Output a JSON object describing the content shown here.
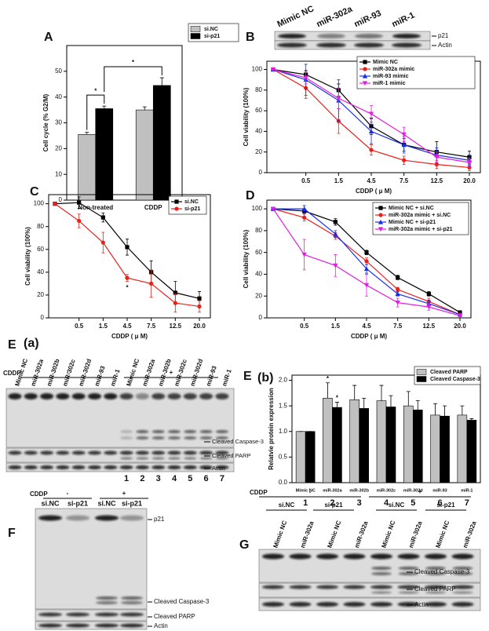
{
  "chart_data": [
    {
      "type": "bar",
      "panel": "A",
      "ylabel": "Cell cycle (% G2/M)",
      "categories": [
        "Non-treated",
        "CDDP"
      ],
      "ylim": [
        0,
        60
      ],
      "yticks": [
        0,
        10,
        20,
        30,
        40,
        50
      ],
      "legend": "top-right",
      "annotations": [
        "*",
        "*"
      ],
      "series": [
        {
          "name": "si.NC",
          "color": "#c0c0c0",
          "values": [
            25.5,
            35
          ],
          "errors": [
            0.8,
            1.2
          ]
        },
        {
          "name": "si-p21",
          "color": "#000000",
          "values": [
            35.5,
            44.5
          ],
          "errors": [
            1,
            3
          ]
        }
      ]
    },
    {
      "type": "line",
      "panel": "B",
      "ylabel": "Cell viability (100%)",
      "xlabel": "CDDP ( μ M)",
      "categories": [
        null,
        "0.5",
        "1.5",
        "4.5",
        "7.5",
        "12.5",
        "20.0"
      ],
      "ylim": [
        0,
        108
      ],
      "yticks": [
        0,
        20,
        40,
        60,
        80,
        100
      ],
      "legend": "top-right",
      "series": [
        {
          "name": "Mimic NC",
          "color": "#000000",
          "marker": "square",
          "values": [
            100,
            95,
            80,
            45,
            27,
            20,
            15
          ],
          "errors": [
            0,
            4,
            6,
            8,
            6,
            10,
            6
          ]
        },
        {
          "name": "miR-302a mimic",
          "color": "#e8201a",
          "marker": "circle",
          "values": [
            100,
            82,
            50,
            22,
            12,
            8,
            5
          ],
          "errors": [
            0,
            10,
            12,
            5,
            4,
            4,
            3
          ]
        },
        {
          "name": "miR-93 mimic",
          "color": "#1a2ee8",
          "marker": "triangle",
          "values": [
            100,
            90,
            70,
            40,
            27,
            17,
            12
          ],
          "errors": [
            0,
            15,
            20,
            12,
            8,
            7,
            5
          ]
        },
        {
          "name": "miR-1 mimic",
          "color": "#e020e0",
          "marker": "triangle-down",
          "values": [
            100,
            92,
            72,
            57,
            37,
            15,
            10
          ],
          "errors": [
            0,
            6,
            10,
            8,
            7,
            5,
            4
          ]
        }
      ]
    },
    {
      "type": "line",
      "panel": "C",
      "ylabel": "Cell viability (100%)",
      "xlabel": "CDDP ( μ M)",
      "categories": [
        null,
        "0.5",
        "1.5",
        "4.5",
        "7.5",
        "12.5",
        "20.0"
      ],
      "ylim": [
        0,
        108
      ],
      "yticks": [
        0,
        20,
        40,
        60,
        80,
        100
      ],
      "legend": "top-right",
      "annotations": [
        "*"
      ],
      "series": [
        {
          "name": "si.NC",
          "color": "#000000",
          "marker": "square",
          "values": [
            100,
            101,
            88,
            62,
            40,
            22,
            17
          ],
          "errors": [
            0,
            5,
            4,
            7,
            10,
            10,
            6
          ]
        },
        {
          "name": "si-p21",
          "color": "#e8201a",
          "marker": "circle",
          "values": [
            100,
            85,
            66,
            35,
            30,
            13,
            10
          ],
          "errors": [
            0,
            6,
            9,
            3,
            12,
            8,
            5
          ]
        }
      ]
    },
    {
      "type": "line",
      "panel": "D",
      "ylabel": "Cell viability (100%)",
      "xlabel": "CDDP ( μ M)",
      "categories": [
        null,
        "0.5",
        "1.5",
        "4.5",
        "7.5",
        "12.5",
        "20.0"
      ],
      "ylim": [
        0,
        108
      ],
      "yticks": [
        0,
        20,
        40,
        60,
        80,
        100
      ],
      "legend": "top-right",
      "series": [
        {
          "name": "Mimic NC + si.NC",
          "color": "#000000",
          "marker": "square",
          "values": [
            100,
            98,
            88,
            60,
            37,
            22,
            5
          ],
          "errors": [
            0,
            2,
            3,
            2,
            2,
            2,
            1
          ]
        },
        {
          "name": "miR-302a mimic + si.NC",
          "color": "#e8201a",
          "marker": "circle",
          "values": [
            100,
            92,
            75,
            52,
            26,
            15,
            3
          ],
          "errors": [
            0,
            3,
            3,
            3,
            2,
            3,
            1
          ]
        },
        {
          "name": "Mimic NC + si-p21",
          "color": "#1a2ee8",
          "marker": "triangle",
          "values": [
            100,
            100,
            77,
            45,
            22,
            13,
            3
          ],
          "errors": [
            0,
            3,
            3,
            4,
            2,
            3,
            1
          ]
        },
        {
          "name": "miR-302a mimic + si-p21",
          "color": "#e020e0",
          "marker": "triangle-down",
          "values": [
            100,
            58,
            48,
            30,
            14,
            10,
            2
          ],
          "errors": [
            0,
            14,
            10,
            10,
            4,
            3,
            1
          ]
        }
      ]
    },
    {
      "type": "bar",
      "panel": "E",
      "subpanel": "(b)",
      "ylabel": "Relatvie protein expression",
      "categories": [
        "Mimic NC",
        "miR-302a",
        "miR-302b",
        "miR-302c",
        "miR-302d",
        "miR-93",
        "miR-1"
      ],
      "category_numbers": [
        "1",
        "2",
        "3",
        "4",
        "5",
        "6",
        "7"
      ],
      "ylim": [
        0,
        2.1
      ],
      "yticks": [
        {
          "value": 0,
          "label": "0.0"
        },
        {
          "value": 0.5,
          "label": "0.5"
        },
        {
          "value": 1,
          "label": "1.0"
        },
        {
          "value": 1.5,
          "label": "1.5"
        },
        {
          "value": 2,
          "label": "2.0"
        }
      ],
      "legend": "top-right",
      "annotations": [
        "*",
        "*"
      ],
      "series": [
        {
          "name": "Cleaved PARP",
          "color": "#c0c0c0",
          "values": [
            1,
            1.65,
            1.62,
            1.6,
            1.5,
            1.32,
            1.32
          ],
          "errors": [
            0,
            0.3,
            0.28,
            0.3,
            0.28,
            0.22,
            0.18
          ]
        },
        {
          "name": "Cleaved Caspase-3",
          "color": "#000000",
          "values": [
            1,
            1.47,
            1.45,
            1.48,
            1.42,
            1.3,
            1.22
          ],
          "errors": [
            0,
            0.1,
            0.2,
            0.22,
            0.18,
            0.2,
            0.03
          ]
        }
      ]
    }
  ],
  "blots": {
    "B": {
      "lanes": [
        "Mimic NC",
        "miR-302a",
        "miR-93",
        "miR-1"
      ],
      "rows": [
        "p21",
        "Actin"
      ]
    },
    "Ea": {
      "label": "E",
      "sublabel": "(a)",
      "treatment": "CDDP",
      "groups": [
        "-",
        "+"
      ],
      "lanes": [
        "Mimic NC",
        "miR-302a",
        "miR-302b",
        "miR-302c",
        "miR-302d",
        "miR-93",
        "miR-1",
        "Mimic NC",
        "miR-302a",
        "miR-302b",
        "miR-302c",
        "miR-302d",
        "miR-93",
        "miR-1"
      ],
      "lane_numbers": [
        "1",
        "2",
        "3",
        "4",
        "5",
        "6",
        "7"
      ],
      "rows": [
        "Cleaved Caspase-3",
        "Cleaved PARP",
        "Actin"
      ]
    },
    "F": {
      "label": "F",
      "treatment": "CDDP",
      "groups": [
        "-",
        "+"
      ],
      "lanes": [
        "si.NC",
        "si-p21",
        "si.NC",
        "si-p21"
      ],
      "rows": [
        "p21",
        "Cleaved Caspase-3",
        "Cleaved PARP",
        "Actin"
      ]
    },
    "G": {
      "label": "G",
      "treatment": "CDDP",
      "groups": [
        "-",
        "+"
      ],
      "subgroups": [
        "si.NC",
        "si-p21",
        "si.NC",
        "si-p21"
      ],
      "lanes": [
        "Mimic NC",
        "miR-302a",
        "Mimic NC",
        "miR-302a",
        "Mimic NC",
        "miR-302a",
        "Mimic NC",
        "miR-302a"
      ],
      "rows": [
        "Cleaved Caspase-3",
        "Cleaved PARP",
        "Actin"
      ]
    }
  }
}
